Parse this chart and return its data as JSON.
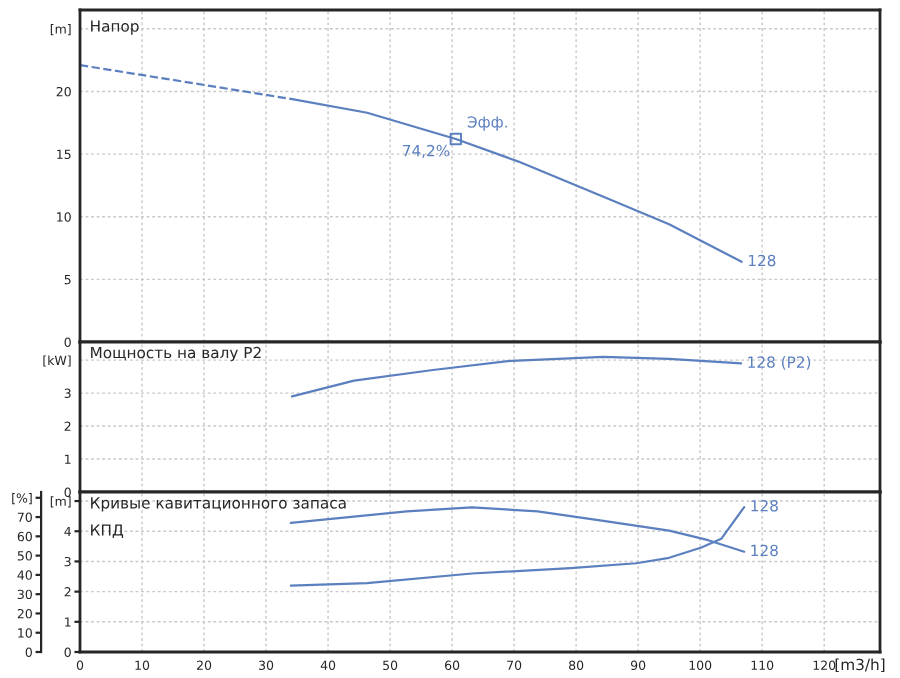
{
  "chart_data": [
    {
      "type": "line",
      "title": "Напор",
      "xlim": [
        0,
        129
      ],
      "xticks": [
        0,
        10,
        20,
        30,
        40,
        50,
        60,
        70,
        80,
        90,
        100,
        110,
        120
      ],
      "ylim": [
        0,
        26.5
      ],
      "yticks": [
        0,
        5,
        10,
        15,
        20,
        {
          "value": 25,
          "label": "[m]"
        }
      ],
      "grid": true,
      "legend": false,
      "tick_labels": "y",
      "series": [
        {
          "color": "#5b7fbf",
          "line_style": "dashed",
          "x": [
            0,
            19,
            34
          ],
          "values": [
            22.1,
            20.6,
            19.4
          ]
        },
        {
          "name": "128",
          "color": "#5b7fbf",
          "line_style": "solid",
          "x": [
            34,
            46.3,
            60.6,
            70.7,
            84.4,
            95,
            106.7
          ],
          "values": [
            19.4,
            18.3,
            16.2,
            14.4,
            11.6,
            9.4,
            6.4
          ]
        },
        {
          "type": "scatter",
          "marker": "square",
          "color": "#5b7fbf",
          "x": [
            60.6
          ],
          "values": [
            16.2
          ]
        }
      ],
      "annotations": [
        {
          "text": "Эфф.",
          "x": 60.6,
          "y": 16.2
        },
        {
          "text": "74,2%",
          "x": 60.6,
          "y": 16.2
        }
      ]
    },
    {
      "type": "line",
      "title": "Мощность на валу P2",
      "xlim": [
        0,
        129
      ],
      "xticks": [
        0,
        10,
        20,
        30,
        40,
        50,
        60,
        70,
        80,
        90,
        100,
        110,
        120
      ],
      "ylim": [
        0,
        4.55
      ],
      "yticks": [
        0,
        1,
        2,
        3,
        {
          "value": 4,
          "label": "[kW]"
        }
      ],
      "grid": true,
      "legend": false,
      "tick_labels": "y",
      "series": [
        {
          "name": "128 (P2)",
          "color": "#5b7fbf",
          "line_style": "solid",
          "x": [
            34.2,
            44.2,
            56.9,
            69.6,
            84.4,
            95,
            106.6
          ],
          "values": [
            2.9,
            3.38,
            3.7,
            3.98,
            4.1,
            4.04,
            3.9
          ]
        }
      ]
    },
    {
      "type": "line",
      "title": "Кривые кавитационного запаса",
      "subtitle": "КПД",
      "xlabel": "[m3/h]",
      "xlim": [
        0,
        129
      ],
      "xticks": [
        0,
        10,
        20,
        30,
        40,
        50,
        60,
        70,
        80,
        90,
        100,
        110,
        120
      ],
      "ylim": [
        0,
        5.3
      ],
      "yticks": [
        0,
        1,
        2,
        3,
        4,
        {
          "value": 5,
          "label": "[m]"
        }
      ],
      "y2lim": [
        0,
        83
      ],
      "y2ticks": [
        0,
        10,
        20,
        30,
        40,
        50,
        60,
        70,
        {
          "value": 80,
          "label": "[%]"
        }
      ],
      "grid": true,
      "legend": false,
      "series": [
        {
          "name": "128",
          "axis": "y2",
          "color": "#5b7fbf",
          "line_style": "solid",
          "x": [
            34,
            52.7,
            63.2,
            73.8,
            84.4,
            95,
            101.3,
            107.1
          ],
          "values": [
            67,
            73,
            75,
            73,
            68,
            63,
            58,
            52
          ]
        },
        {
          "name": "128",
          "color": "#5b7fbf",
          "line_style": "solid",
          "x": [
            34,
            46.3,
            63.2,
            79.1,
            89.7,
            95,
            100.2,
            103.4,
            107.1
          ],
          "values": [
            2.2,
            2.28,
            2.6,
            2.78,
            2.94,
            3.12,
            3.46,
            3.75,
            4.8
          ]
        }
      ]
    }
  ]
}
